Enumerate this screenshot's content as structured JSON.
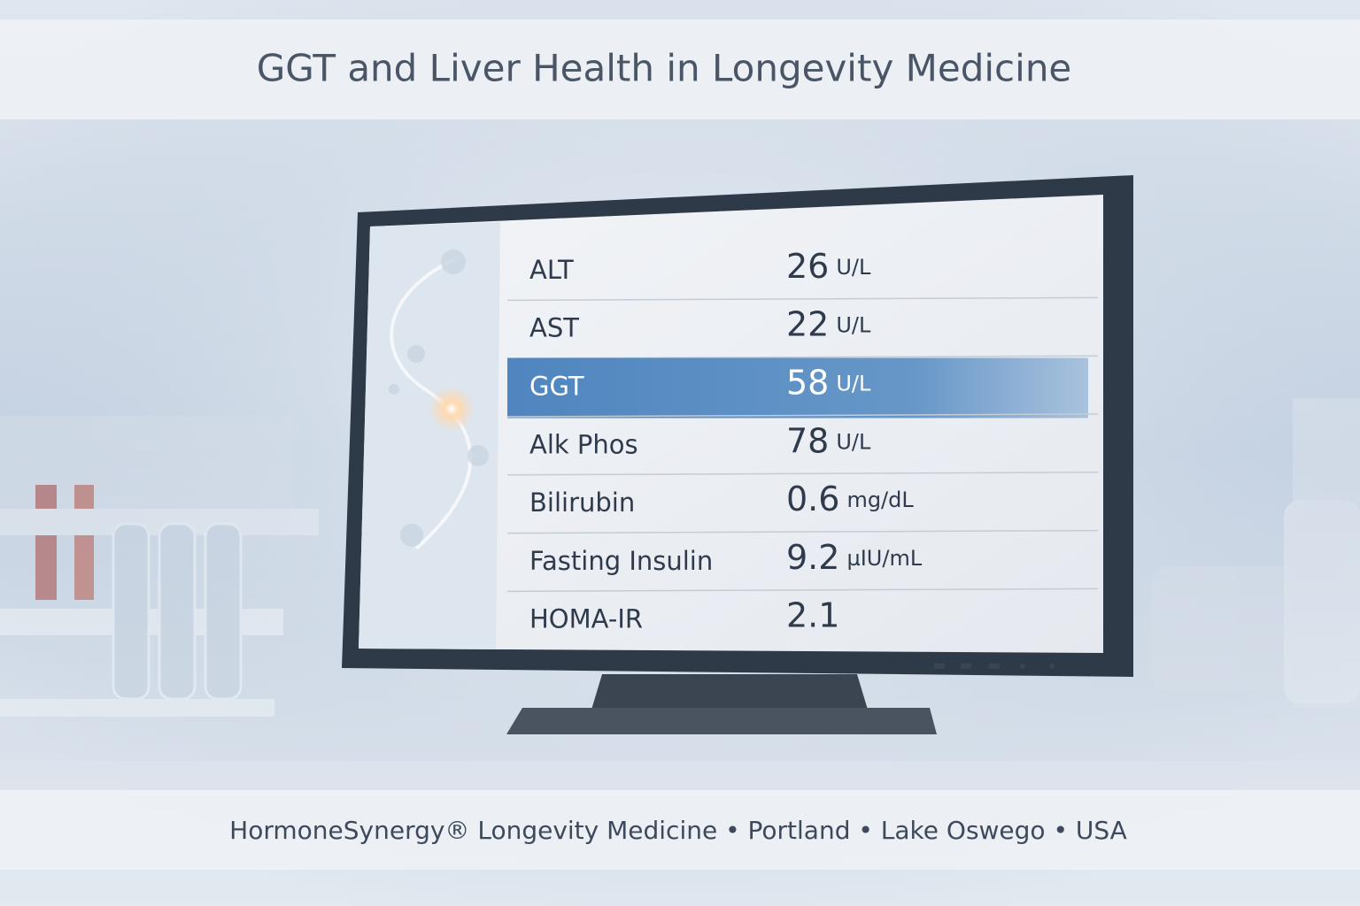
{
  "header": {
    "title": "GGT and Liver Health in Longevity Medicine"
  },
  "table": {
    "rows": [
      {
        "label": "ALT",
        "value": "26",
        "unit": "U/L"
      },
      {
        "label": "AST",
        "value": "22",
        "unit": "U/L"
      },
      {
        "label": "GGT",
        "value": "58",
        "unit": "U/L",
        "highlighted": true
      },
      {
        "label": "Alk Phos",
        "value": "78",
        "unit": "U/L"
      },
      {
        "label": "Bilirubin",
        "value": "0.6",
        "unit": "mg/dL"
      },
      {
        "label": "Fasting Insulin",
        "value": "9.2",
        "unit": "µIU/mL"
      },
      {
        "label": "HOMA-IR",
        "value": "2.1"
      }
    ]
  },
  "footer": {
    "text": "HormoneSynergy® Longevity Medicine • Portland • Lake Oswego • USA"
  }
}
